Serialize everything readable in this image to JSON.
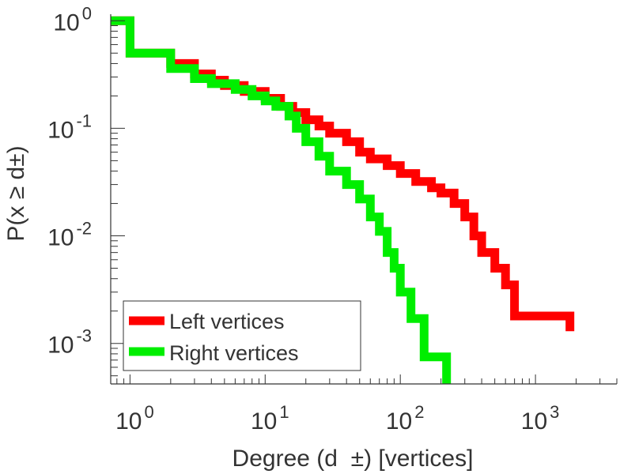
{
  "chart_data": {
    "type": "line",
    "title": "",
    "xlabel": "Degree (d  ±) [vertices]",
    "ylabel": "P(x ≥ d±)",
    "x_scale": "log",
    "y_scale": "log",
    "xlim": [
      0.72,
      4000
    ],
    "ylim": [
      0.00042,
      1.15
    ],
    "x_ticks": [
      {
        "value": 1,
        "base": "10",
        "exp": "0"
      },
      {
        "value": 10,
        "base": "10",
        "exp": "1"
      },
      {
        "value": 100,
        "base": "10",
        "exp": "2"
      },
      {
        "value": 1000,
        "base": "10",
        "exp": "3"
      }
    ],
    "y_ticks": [
      {
        "value": 1,
        "base": "10",
        "exp": "0"
      },
      {
        "value": 0.1,
        "base": "10",
        "exp": "-1"
      },
      {
        "value": 0.01,
        "base": "10",
        "exp": "-2"
      },
      {
        "value": 0.001,
        "base": "10",
        "exp": "-3"
      }
    ],
    "grid": false,
    "legend_position": "bottom-left",
    "series": [
      {
        "name": "Left vertices",
        "color": "#ff0000",
        "step": true,
        "x": [
          0.72,
          1,
          2,
          3,
          4,
          5,
          7,
          10,
          13,
          16,
          20,
          25,
          30,
          40,
          50,
          60,
          80,
          100,
          130,
          170,
          200,
          250,
          300,
          350,
          400,
          500,
          600,
          700,
          1800
        ],
        "y": [
          1,
          0.5,
          0.4,
          0.32,
          0.28,
          0.25,
          0.22,
          0.19,
          0.16,
          0.14,
          0.12,
          0.105,
          0.09,
          0.075,
          0.06,
          0.052,
          0.045,
          0.038,
          0.032,
          0.028,
          0.025,
          0.02,
          0.015,
          0.01,
          0.007,
          0.005,
          0.0035,
          0.0018,
          0.0013
        ]
      },
      {
        "name": "Right vertices",
        "color": "#00ee00",
        "step": true,
        "x": [
          0.72,
          1,
          2,
          3,
          4,
          6,
          8,
          10,
          12,
          15,
          17,
          20,
          25,
          30,
          40,
          50,
          60,
          70,
          80,
          90,
          100,
          120,
          150,
          220
        ],
        "y": [
          1,
          0.5,
          0.36,
          0.29,
          0.26,
          0.23,
          0.2,
          0.18,
          0.16,
          0.13,
          0.1,
          0.075,
          0.055,
          0.04,
          0.03,
          0.022,
          0.015,
          0.011,
          0.007,
          0.005,
          0.003,
          0.0017,
          0.00075,
          0.0004
        ]
      }
    ]
  }
}
